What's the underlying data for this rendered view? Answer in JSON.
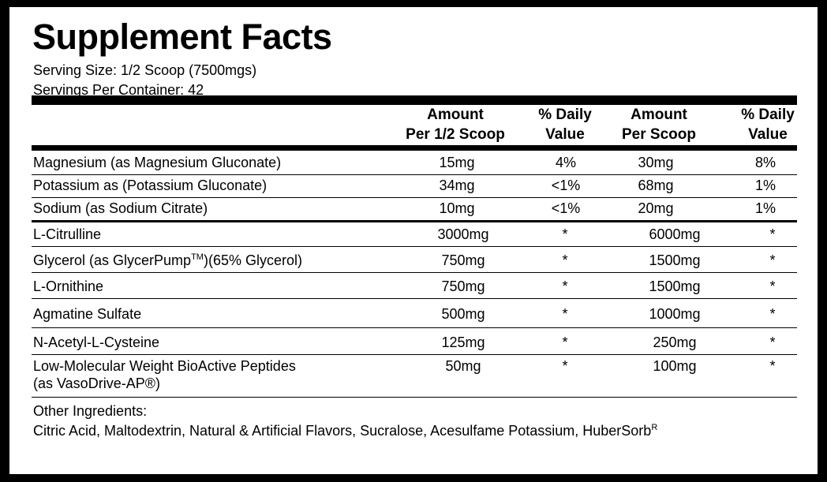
{
  "header": {
    "title": "Supplement Facts",
    "serving_size": "Serving Size: 1/2 Scoop (7500mgs)",
    "servings": "Servings Per Container: 42"
  },
  "table": {
    "columns": [
      [
        "Amount",
        "Per 1/2 Scoop"
      ],
      [
        "% Daily",
        "Value"
      ],
      [
        "Amount",
        "Per Scoop"
      ],
      [
        "% Daily",
        "Value"
      ]
    ],
    "rows": [
      {
        "name": [
          "Magnesium (as Magnesium Gluconate)"
        ],
        "values": [
          "15mg",
          "4%",
          "30mg",
          "8%"
        ]
      },
      {
        "name": [
          "Potassium  as (Potassium Gluconate)"
        ],
        "values": [
          "34mg",
          "<1%",
          "68mg",
          "1%"
        ]
      },
      {
        "name": [
          "Sodium (as Sodium Citrate)"
        ],
        "values": [
          "10mg",
          "<1%",
          "20mg",
          "1%"
        ]
      },
      {
        "name": [
          "L-Citrulline"
        ],
        "values": [
          "3000mg",
          "*",
          "6000mg",
          "*"
        ]
      },
      {
        "name": [
          "Glycerol (as GlycerPump"
        ],
        "name_superscript": "TM",
        "name_after": ")(65% Glycerol)",
        "values": [
          "750mg",
          "*",
          "1500mg",
          "*"
        ]
      },
      {
        "name": [
          "L-Ornithine"
        ],
        "values": [
          "750mg",
          "*",
          "1500mg",
          "*"
        ]
      },
      {
        "name": [
          "Agmatine Sulfate"
        ],
        "values": [
          "500mg",
          "*",
          "1000mg",
          "*"
        ]
      },
      {
        "name": [
          "N-Acetyl-L-Cysteine"
        ],
        "values": [
          "125mg",
          "*",
          "250mg",
          "*"
        ]
      },
      {
        "name": [
          "Low-Molecular Weight BioActive Peptides",
          "(as VasoDrive-AP®)"
        ],
        "values": [
          "50mg",
          "*",
          "100mg",
          "*"
        ]
      }
    ]
  },
  "other": {
    "label": "Other Ingredients:",
    "text": "Citric Acid, Maltodextrin, Natural & Artificial Flavors, Sucralose, Acesulfame Potassium, HuberSorb",
    "superscript": "R"
  }
}
